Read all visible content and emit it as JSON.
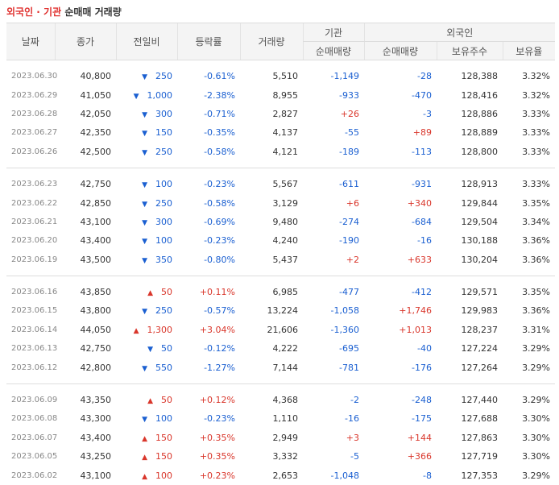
{
  "title": {
    "part1": "외국인 · 기관",
    "part2": "순매매 거래량"
  },
  "headers": {
    "date": "날짜",
    "close": "종가",
    "change": "전일비",
    "rate": "등락률",
    "volume": "거래량",
    "inst": "기관",
    "inst_net": "순매매량",
    "foreign": "외국인",
    "foreign_net": "순매매량",
    "foreign_hold": "보유주수",
    "foreign_ratio": "보유율"
  },
  "groups": [
    [
      {
        "date": "2023.06.30",
        "close": "40,800",
        "dir": "down",
        "chg": "250",
        "rate": "-0.61%",
        "vol": "5,510",
        "inst": "-1,149",
        "frn": "-28",
        "hold": "128,388",
        "ratio": "3.32%"
      },
      {
        "date": "2023.06.29",
        "close": "41,050",
        "dir": "down",
        "chg": "1,000",
        "rate": "-2.38%",
        "vol": "8,955",
        "inst": "-933",
        "frn": "-470",
        "hold": "128,416",
        "ratio": "3.32%"
      },
      {
        "date": "2023.06.28",
        "close": "42,050",
        "dir": "down",
        "chg": "300",
        "rate": "-0.71%",
        "vol": "2,827",
        "inst": "+26",
        "frn": "-3",
        "hold": "128,886",
        "ratio": "3.33%"
      },
      {
        "date": "2023.06.27",
        "close": "42,350",
        "dir": "down",
        "chg": "150",
        "rate": "-0.35%",
        "vol": "4,137",
        "inst": "-55",
        "frn": "+89",
        "hold": "128,889",
        "ratio": "3.33%"
      },
      {
        "date": "2023.06.26",
        "close": "42,500",
        "dir": "down",
        "chg": "250",
        "rate": "-0.58%",
        "vol": "4,121",
        "inst": "-189",
        "frn": "-113",
        "hold": "128,800",
        "ratio": "3.33%"
      }
    ],
    [
      {
        "date": "2023.06.23",
        "close": "42,750",
        "dir": "down",
        "chg": "100",
        "rate": "-0.23%",
        "vol": "5,567",
        "inst": "-611",
        "frn": "-931",
        "hold": "128,913",
        "ratio": "3.33%"
      },
      {
        "date": "2023.06.22",
        "close": "42,850",
        "dir": "down",
        "chg": "250",
        "rate": "-0.58%",
        "vol": "3,129",
        "inst": "+6",
        "frn": "+340",
        "hold": "129,844",
        "ratio": "3.35%"
      },
      {
        "date": "2023.06.21",
        "close": "43,100",
        "dir": "down",
        "chg": "300",
        "rate": "-0.69%",
        "vol": "9,480",
        "inst": "-274",
        "frn": "-684",
        "hold": "129,504",
        "ratio": "3.34%"
      },
      {
        "date": "2023.06.20",
        "close": "43,400",
        "dir": "down",
        "chg": "100",
        "rate": "-0.23%",
        "vol": "4,240",
        "inst": "-190",
        "frn": "-16",
        "hold": "130,188",
        "ratio": "3.36%"
      },
      {
        "date": "2023.06.19",
        "close": "43,500",
        "dir": "down",
        "chg": "350",
        "rate": "-0.80%",
        "vol": "5,437",
        "inst": "+2",
        "frn": "+633",
        "hold": "130,204",
        "ratio": "3.36%"
      }
    ],
    [
      {
        "date": "2023.06.16",
        "close": "43,850",
        "dir": "up",
        "chg": "50",
        "rate": "+0.11%",
        "vol": "6,985",
        "inst": "-477",
        "frn": "-412",
        "hold": "129,571",
        "ratio": "3.35%"
      },
      {
        "date": "2023.06.15",
        "close": "43,800",
        "dir": "down",
        "chg": "250",
        "rate": "-0.57%",
        "vol": "13,224",
        "inst": "-1,058",
        "frn": "+1,746",
        "hold": "129,983",
        "ratio": "3.36%"
      },
      {
        "date": "2023.06.14",
        "close": "44,050",
        "dir": "up",
        "chg": "1,300",
        "rate": "+3.04%",
        "vol": "21,606",
        "inst": "-1,360",
        "frn": "+1,013",
        "hold": "128,237",
        "ratio": "3.31%"
      },
      {
        "date": "2023.06.13",
        "close": "42,750",
        "dir": "down",
        "chg": "50",
        "rate": "-0.12%",
        "vol": "4,222",
        "inst": "-695",
        "frn": "-40",
        "hold": "127,224",
        "ratio": "3.29%"
      },
      {
        "date": "2023.06.12",
        "close": "42,800",
        "dir": "down",
        "chg": "550",
        "rate": "-1.27%",
        "vol": "7,144",
        "inst": "-781",
        "frn": "-176",
        "hold": "127,264",
        "ratio": "3.29%"
      }
    ],
    [
      {
        "date": "2023.06.09",
        "close": "43,350",
        "dir": "up",
        "chg": "50",
        "rate": "+0.12%",
        "vol": "4,368",
        "inst": "-2",
        "frn": "-248",
        "hold": "127,440",
        "ratio": "3.29%"
      },
      {
        "date": "2023.06.08",
        "close": "43,300",
        "dir": "down",
        "chg": "100",
        "rate": "-0.23%",
        "vol": "1,110",
        "inst": "-16",
        "frn": "-175",
        "hold": "127,688",
        "ratio": "3.30%"
      },
      {
        "date": "2023.06.07",
        "close": "43,400",
        "dir": "up",
        "chg": "150",
        "rate": "+0.35%",
        "vol": "2,949",
        "inst": "+3",
        "frn": "+144",
        "hold": "127,863",
        "ratio": "3.30%"
      },
      {
        "date": "2023.06.05",
        "close": "43,250",
        "dir": "up",
        "chg": "150",
        "rate": "+0.35%",
        "vol": "3,332",
        "inst": "-5",
        "frn": "+366",
        "hold": "127,719",
        "ratio": "3.30%"
      },
      {
        "date": "2023.06.02",
        "close": "43,100",
        "dir": "up",
        "chg": "100",
        "rate": "+0.23%",
        "vol": "2,653",
        "inst": "-1,048",
        "frn": "-8",
        "hold": "127,353",
        "ratio": "3.29%"
      }
    ]
  ],
  "icons": {
    "up": "triangle-up-icon",
    "down": "triangle-down-icon"
  },
  "colors": {
    "up": "#d9362b",
    "down": "#1a5fd1",
    "title_accent": "#e0312f"
  }
}
